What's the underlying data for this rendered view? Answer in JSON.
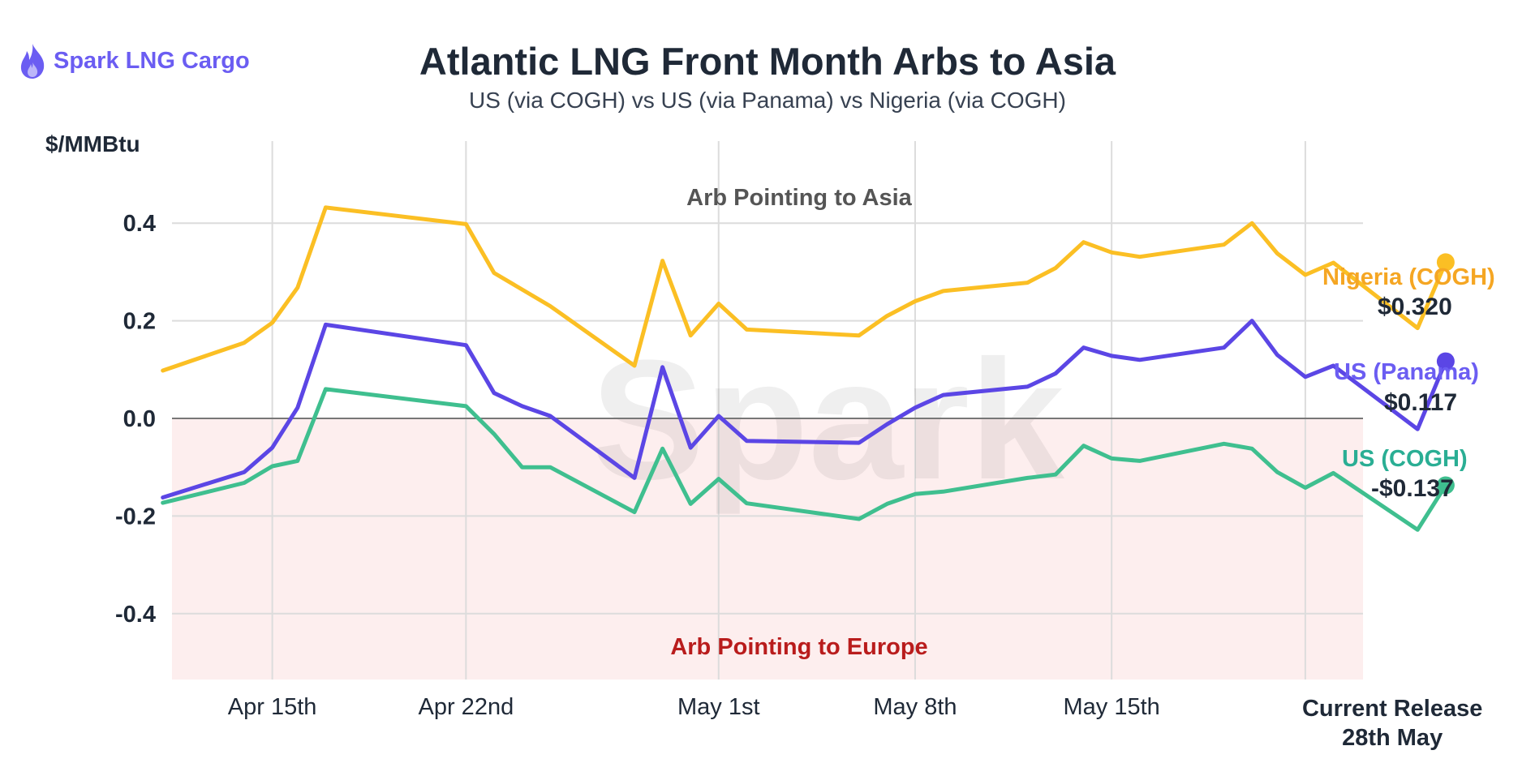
{
  "brand": {
    "name": "Spark LNG Cargo",
    "icon": "flame-icon",
    "color": "#6b5df2"
  },
  "watermark": "Spark",
  "chart_data": {
    "type": "line",
    "title": "Atlantic LNG Front Month Arbs to Asia",
    "subtitle": "US (via COGH) vs US (via Panama) vs Nigeria (via COGH)",
    "ylabel": "$/MMBtu",
    "ylim": [
      -0.53,
      0.58
    ],
    "yticks": [
      {
        "value": 0.4,
        "label": "0.4"
      },
      {
        "value": 0.2,
        "label": "0.2"
      },
      {
        "value": 0.0,
        "label": "0.0"
      },
      {
        "value": -0.2,
        "label": "-0.2"
      },
      {
        "value": -0.4,
        "label": "-0.4"
      }
    ],
    "xlim": [
      0,
      46.5
    ],
    "xticks": [
      {
        "x": 4.7,
        "label": "Apr 15th"
      },
      {
        "x": 11.6,
        "label": "Apr 22nd"
      },
      {
        "x": 20.6,
        "label": "May 1st"
      },
      {
        "x": 27.6,
        "label": "May 8th"
      },
      {
        "x": 34.6,
        "label": "May 15th"
      }
    ],
    "current_release": {
      "x": 44.6,
      "line1": "Current Release",
      "line2": "28th May"
    },
    "vgrid_x": [
      4.7,
      11.6,
      20.6,
      27.6,
      34.6,
      41.5
    ],
    "zones": [
      {
        "label": "Arb Pointing to Asia",
        "color": "#555555"
      },
      {
        "label": "Arb Pointing to Europe",
        "color": "#b91c1c",
        "fill": "#fdeeee"
      }
    ],
    "grid": true,
    "series": [
      {
        "name": "Nigeria (COGH)",
        "color": "#fbbf24",
        "label_color": "#f5a623",
        "end_value_label": "$0.320",
        "points": [
          [
            0.8,
            0.098
          ],
          [
            3.7,
            0.155
          ],
          [
            4.7,
            0.196
          ],
          [
            5.6,
            0.268
          ],
          [
            6.6,
            0.432
          ],
          [
            11.6,
            0.398
          ],
          [
            12.6,
            0.298
          ],
          [
            14.6,
            0.23
          ],
          [
            17.6,
            0.108
          ],
          [
            18.6,
            0.323
          ],
          [
            19.6,
            0.17
          ],
          [
            20.6,
            0.235
          ],
          [
            21.6,
            0.182
          ],
          [
            25.6,
            0.17
          ],
          [
            26.6,
            0.21
          ],
          [
            27.6,
            0.24
          ],
          [
            28.6,
            0.261
          ],
          [
            31.6,
            0.278
          ],
          [
            32.6,
            0.308
          ],
          [
            33.6,
            0.361
          ],
          [
            34.6,
            0.34
          ],
          [
            35.6,
            0.331
          ],
          [
            38.6,
            0.356
          ],
          [
            39.6,
            0.4
          ],
          [
            40.5,
            0.338
          ],
          [
            41.5,
            0.294
          ],
          [
            42.5,
            0.319
          ],
          [
            45.5,
            0.185
          ],
          [
            46.5,
            0.32
          ]
        ]
      },
      {
        "name": "US (Panama)",
        "color": "#5b46e5",
        "label_color": "#6b5df2",
        "end_value_label": "$0.117",
        "points": [
          [
            0.8,
            -0.162
          ],
          [
            3.7,
            -0.11
          ],
          [
            4.7,
            -0.06
          ],
          [
            5.6,
            0.022
          ],
          [
            6.6,
            0.192
          ],
          [
            11.6,
            0.15
          ],
          [
            12.6,
            0.052
          ],
          [
            13.6,
            0.025
          ],
          [
            14.6,
            0.005
          ],
          [
            17.6,
            -0.122
          ],
          [
            18.6,
            0.105
          ],
          [
            19.6,
            -0.06
          ],
          [
            20.6,
            0.005
          ],
          [
            21.6,
            -0.046
          ],
          [
            25.6,
            -0.05
          ],
          [
            26.6,
            -0.012
          ],
          [
            27.6,
            0.022
          ],
          [
            28.6,
            0.048
          ],
          [
            31.6,
            0.065
          ],
          [
            32.6,
            0.092
          ],
          [
            33.6,
            0.145
          ],
          [
            34.6,
            0.128
          ],
          [
            35.6,
            0.12
          ],
          [
            38.6,
            0.145
          ],
          [
            39.6,
            0.2
          ],
          [
            40.5,
            0.13
          ],
          [
            41.5,
            0.085
          ],
          [
            42.5,
            0.108
          ],
          [
            45.5,
            -0.022
          ],
          [
            46.5,
            0.117
          ]
        ]
      },
      {
        "name": "US (COGH)",
        "color": "#3fbf8f",
        "label_color": "#2aae94",
        "end_value_label": "-$0.137",
        "points": [
          [
            0.8,
            -0.173
          ],
          [
            3.7,
            -0.132
          ],
          [
            4.7,
            -0.098
          ],
          [
            5.6,
            -0.087
          ],
          [
            6.6,
            0.06
          ],
          [
            11.6,
            0.025
          ],
          [
            12.6,
            -0.032
          ],
          [
            13.6,
            -0.1
          ],
          [
            14.6,
            -0.1
          ],
          [
            17.6,
            -0.192
          ],
          [
            18.6,
            -0.062
          ],
          [
            19.6,
            -0.175
          ],
          [
            20.6,
            -0.124
          ],
          [
            21.6,
            -0.174
          ],
          [
            25.6,
            -0.206
          ],
          [
            26.6,
            -0.175
          ],
          [
            27.6,
            -0.155
          ],
          [
            28.6,
            -0.15
          ],
          [
            31.6,
            -0.122
          ],
          [
            32.6,
            -0.115
          ],
          [
            33.6,
            -0.056
          ],
          [
            34.6,
            -0.082
          ],
          [
            35.6,
            -0.087
          ],
          [
            38.6,
            -0.052
          ],
          [
            39.6,
            -0.062
          ],
          [
            40.5,
            -0.11
          ],
          [
            41.5,
            -0.142
          ],
          [
            42.5,
            -0.112
          ],
          [
            45.5,
            -0.228
          ],
          [
            46.5,
            -0.137
          ]
        ]
      }
    ]
  }
}
